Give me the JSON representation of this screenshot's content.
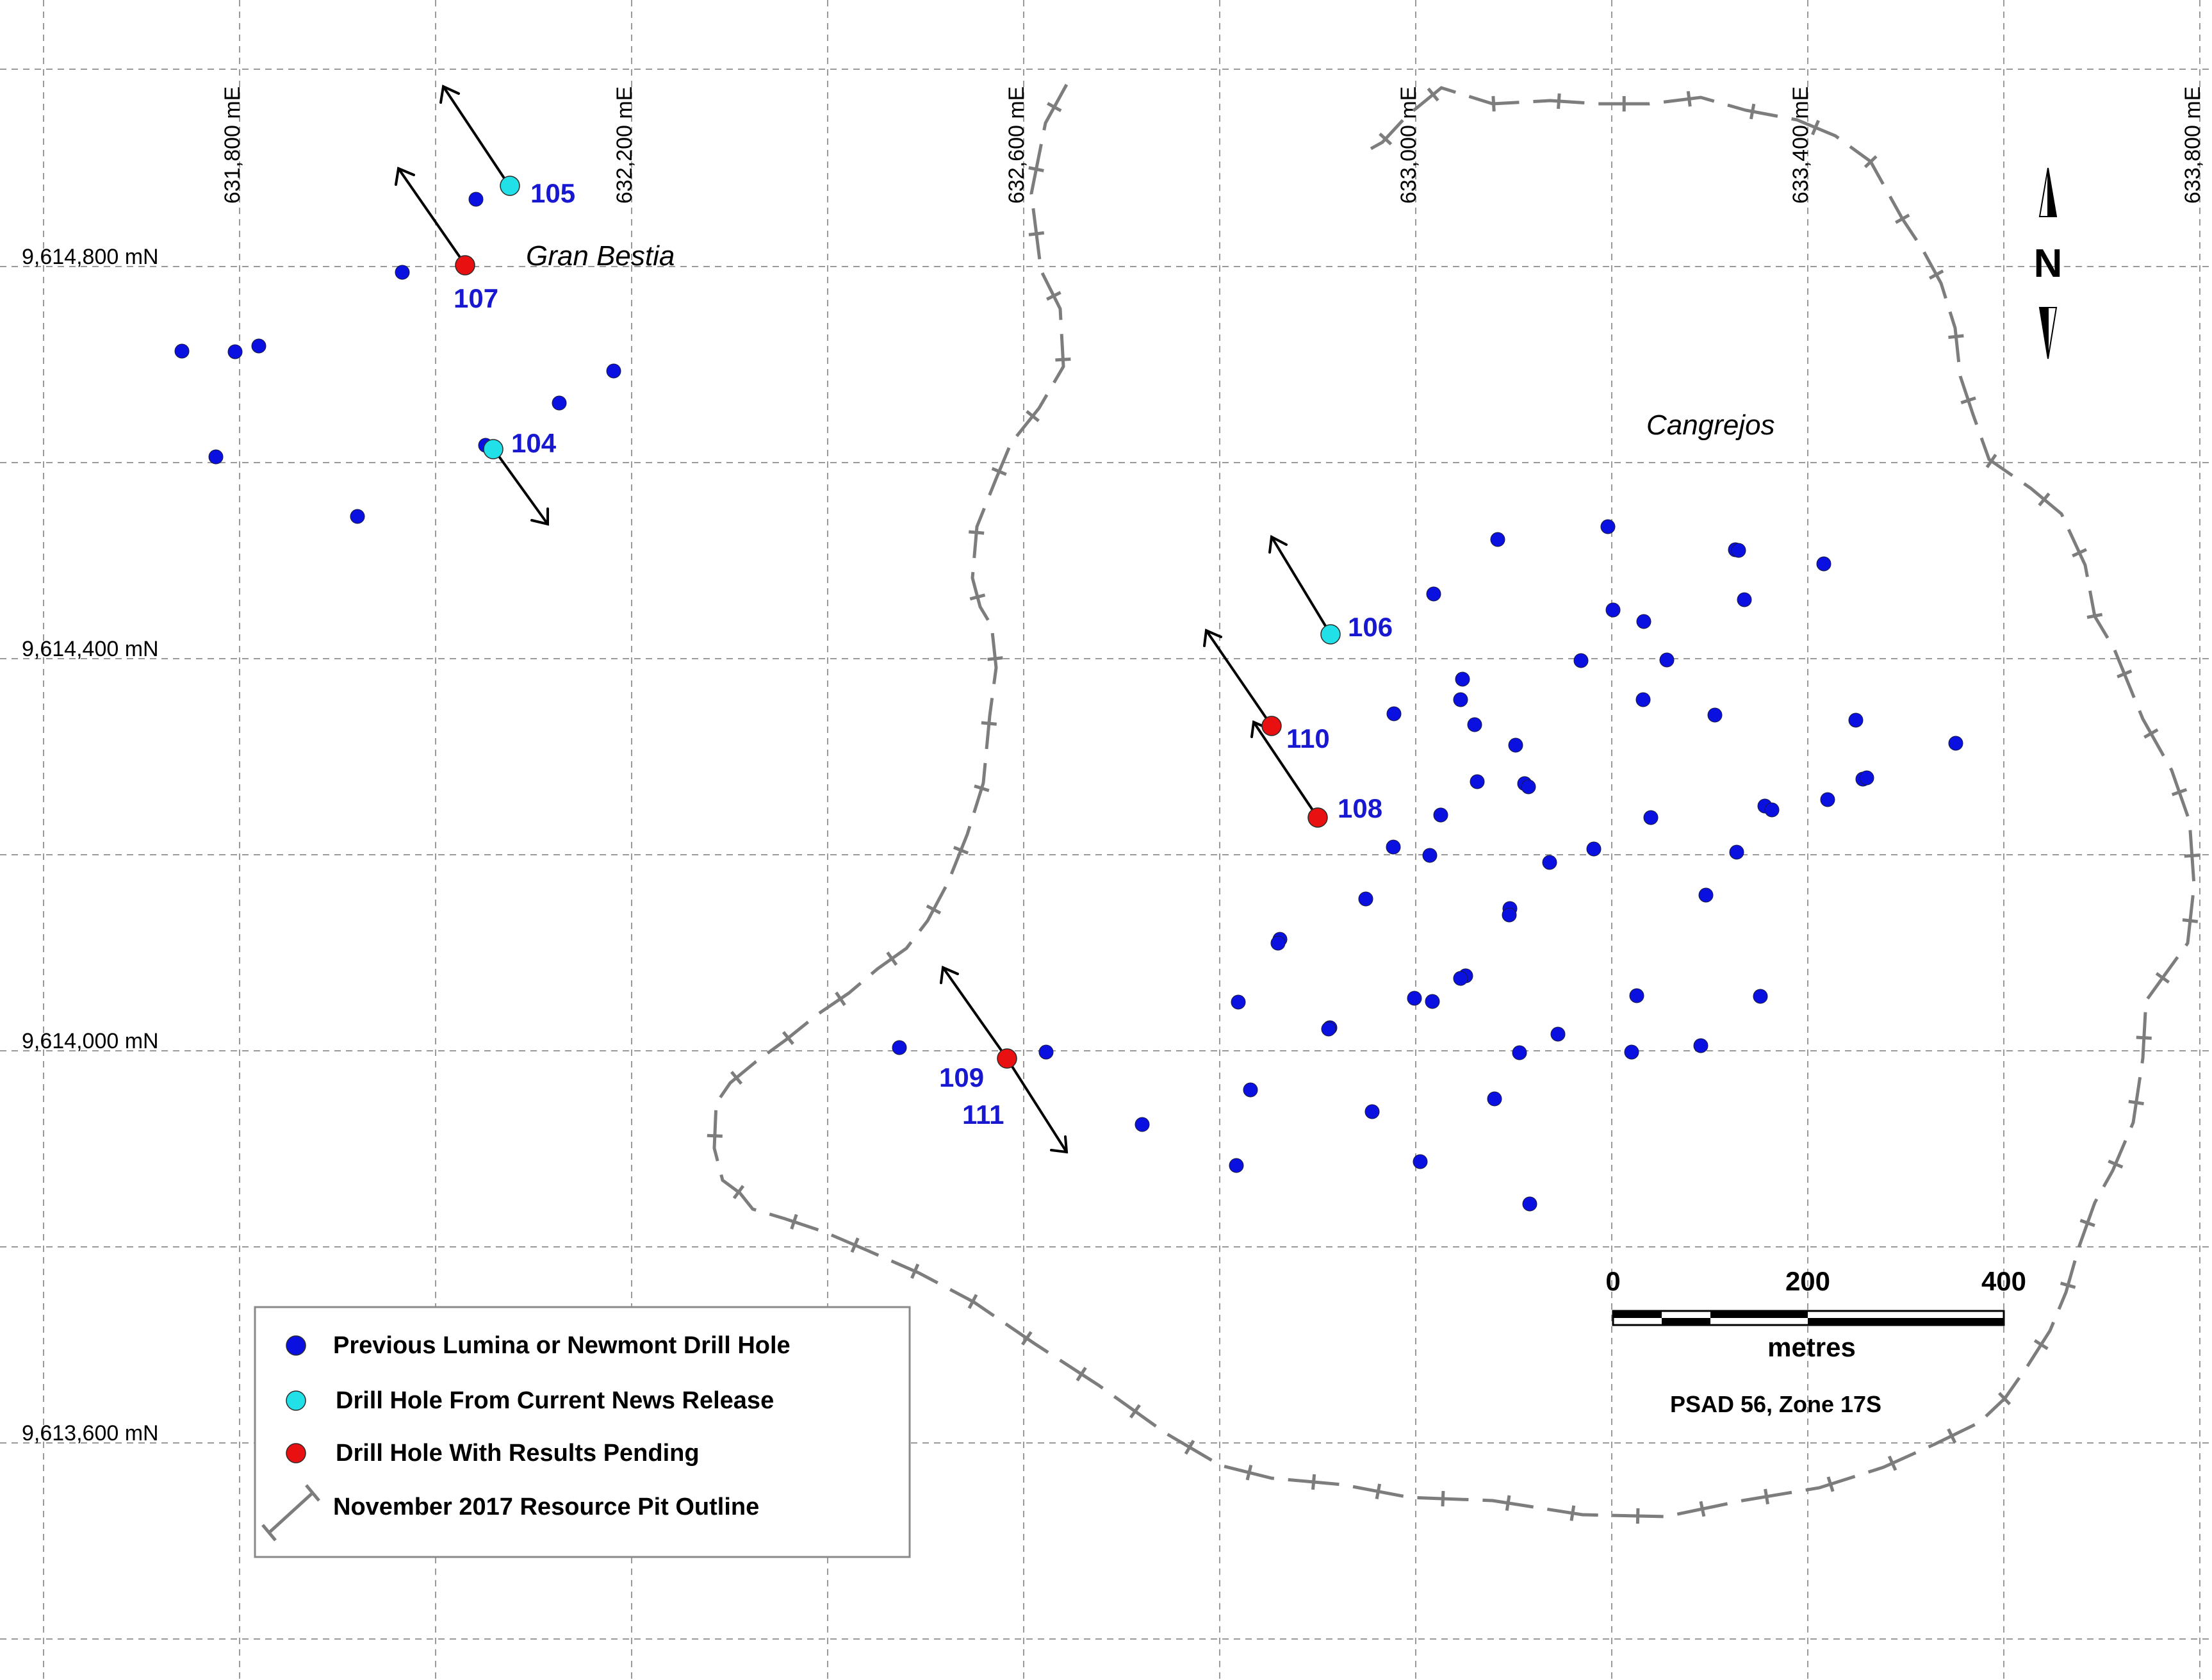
{
  "map": {
    "easting_labels": [
      "631,800 mE",
      "632,200 mE",
      "632,600 mE",
      "633,000 mE",
      "633,400 mE",
      "633,800 mE"
    ],
    "northing_labels": [
      "9,614,800 mN",
      "9,614,400 mN",
      "9,614,000 mN",
      "9,613,600 mN"
    ],
    "place_names": [
      "Gran Bestia",
      "Cangrejos"
    ],
    "drill_hole_labels": [
      "105",
      "107",
      "104",
      "106",
      "110",
      "108",
      "109",
      "111"
    ],
    "north_arrow_label": "N",
    "scale_bar": {
      "ticks": [
        "0",
        "200",
        "400"
      ],
      "unit": "metres",
      "datum": "PSAD 56, Zone 17S"
    },
    "legend": [
      {
        "label": "Previous Lumina or Newmont Drill Hole",
        "symbol": "circle",
        "color": "#0a10e0"
      },
      {
        "label": "Drill Hole From Current News Release",
        "symbol": "circle",
        "color": "#22e0e8"
      },
      {
        "label": "Drill Hole With Results Pending",
        "symbol": "circle",
        "color": "#e81010"
      },
      {
        "label": "November 2017 Resource Pit Outline",
        "symbol": "tick-line",
        "color": "#7d7d7d"
      }
    ],
    "colors": {
      "previous_hole": "#0a10e0",
      "news_hole": "#22e0e8",
      "pending_hole": "#e81010",
      "pit_outline": "#7d7d7d",
      "grid": "#9a9a9a",
      "label_blue": "#1818d0"
    }
  }
}
